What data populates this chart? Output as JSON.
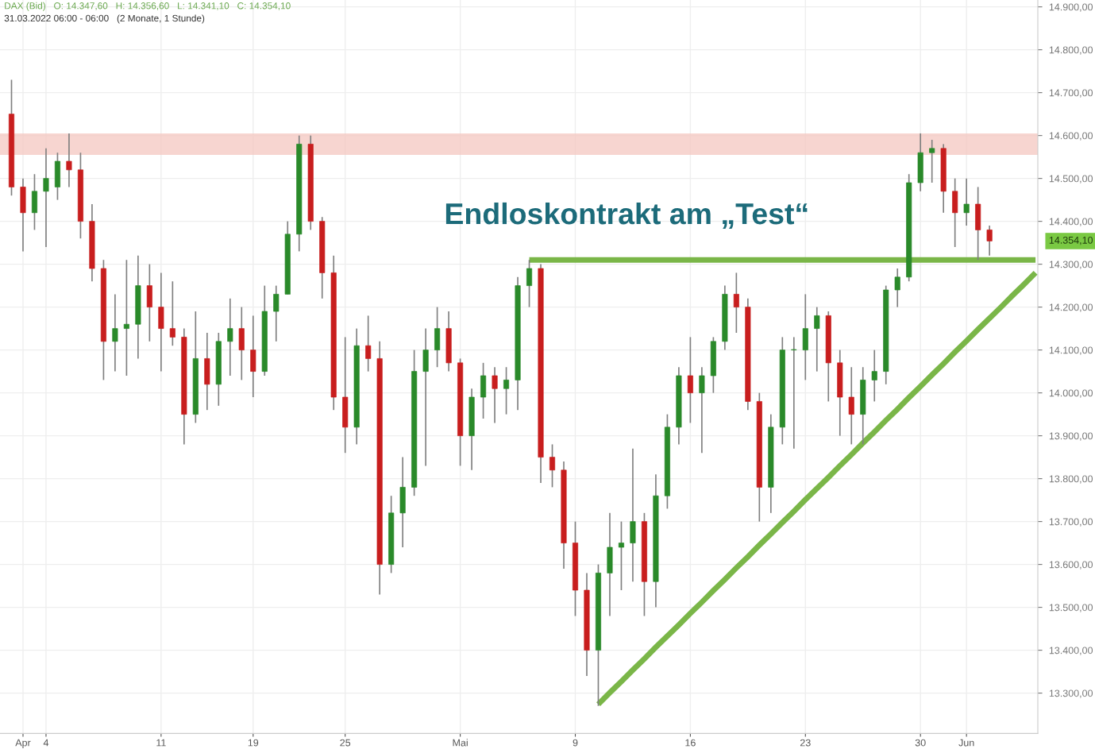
{
  "chart_data": {
    "type": "candlestick",
    "title": "DAX (Bid)   O: 14.347,60   H: 14.356,60   L: 14.341,10   C: 14.354,10",
    "subtitle": "31.03.2022 06:00 - 06:00   (2 Monate, 1 Stunde)",
    "categories": [
      null,
      "Apr",
      null,
      "4",
      null,
      null,
      null,
      null,
      null,
      null,
      null,
      null,
      null,
      "11",
      null,
      null,
      null,
      null,
      null,
      null,
      null,
      "19",
      null,
      null,
      null,
      null,
      null,
      null,
      null,
      "25",
      null,
      null,
      null,
      null,
      null,
      null,
      null,
      null,
      null,
      "Mai",
      null,
      null,
      null,
      null,
      null,
      null,
      null,
      null,
      null,
      "9",
      null,
      null,
      null,
      null,
      null,
      null,
      null,
      null,
      null,
      "16",
      null,
      null,
      null,
      null,
      null,
      null,
      null,
      null,
      null,
      "23",
      null,
      null,
      null,
      null,
      null,
      null,
      null,
      null,
      null,
      "30",
      null,
      null,
      null,
      "Jun",
      null,
      null,
      null,
      null,
      null,
      null
    ],
    "ohlc": [
      [
        14650,
        14730,
        14460,
        14480
      ],
      [
        14480,
        14500,
        14330,
        14420
      ],
      [
        14420,
        14510,
        14380,
        14470
      ],
      [
        14470,
        14570,
        14340,
        14500
      ],
      [
        14480,
        14560,
        14450,
        14540
      ],
      [
        14540,
        14605,
        14480,
        14520
      ],
      [
        14520,
        14560,
        14360,
        14400
      ],
      [
        14400,
        14440,
        14260,
        14290
      ],
      [
        14290,
        14310,
        14030,
        14120
      ],
      [
        14120,
        14230,
        14050,
        14150
      ],
      [
        14150,
        14310,
        14040,
        14160
      ],
      [
        14160,
        14320,
        14080,
        14250
      ],
      [
        14250,
        14300,
        14120,
        14200
      ],
      [
        14200,
        14280,
        14050,
        14150
      ],
      [
        14150,
        14260,
        14110,
        14130
      ],
      [
        14130,
        14150,
        13880,
        13950
      ],
      [
        13950,
        14190,
        13930,
        14080
      ],
      [
        14080,
        14140,
        13960,
        14020
      ],
      [
        14020,
        14140,
        13970,
        14120
      ],
      [
        14120,
        14220,
        14040,
        14150
      ],
      [
        14150,
        14200,
        14030,
        14100
      ],
      [
        14100,
        14180,
        13990,
        14050
      ],
      [
        14050,
        14250,
        14040,
        14190
      ],
      [
        14190,
        14250,
        14120,
        14230
      ],
      [
        14230,
        14400,
        14230,
        14370
      ],
      [
        14370,
        14600,
        14330,
        14580
      ],
      [
        14580,
        14600,
        14380,
        14400
      ],
      [
        14400,
        14410,
        14220,
        14280
      ],
      [
        14280,
        14320,
        13960,
        13990
      ],
      [
        13990,
        14130,
        13860,
        13920
      ],
      [
        13920,
        14150,
        13880,
        14110
      ],
      [
        14110,
        14180,
        14050,
        14080
      ],
      [
        14080,
        14120,
        13530,
        13600
      ],
      [
        13600,
        13760,
        13580,
        13720
      ],
      [
        13720,
        13850,
        13640,
        13780
      ],
      [
        13780,
        14100,
        13760,
        14050
      ],
      [
        14050,
        14150,
        13830,
        14100
      ],
      [
        14100,
        14200,
        14060,
        14150
      ],
      [
        14150,
        14190,
        14050,
        14070
      ],
      [
        14070,
        14080,
        13830,
        13900
      ],
      [
        13900,
        14010,
        13820,
        13990
      ],
      [
        13990,
        14070,
        13940,
        14040
      ],
      [
        14040,
        14060,
        13930,
        14010
      ],
      [
        14010,
        14060,
        13950,
        14030
      ],
      [
        14030,
        14270,
        13960,
        14250
      ],
      [
        14250,
        14310,
        14200,
        14290
      ],
      [
        14290,
        14300,
        13790,
        13850
      ],
      [
        13850,
        13880,
        13780,
        13820
      ],
      [
        13820,
        13840,
        13590,
        13650
      ],
      [
        13650,
        13700,
        13480,
        13540
      ],
      [
        13540,
        13580,
        13340,
        13400
      ],
      [
        13400,
        13600,
        13270,
        13580
      ],
      [
        13580,
        13720,
        13480,
        13640
      ],
      [
        13640,
        13700,
        13540,
        13650
      ],
      [
        13650,
        13870,
        13560,
        13700
      ],
      [
        13700,
        13720,
        13480,
        13560
      ],
      [
        13560,
        13810,
        13500,
        13760
      ],
      [
        13760,
        13950,
        13730,
        13920
      ],
      [
        13920,
        14060,
        13880,
        14040
      ],
      [
        14040,
        14130,
        13930,
        14000
      ],
      [
        14000,
        14060,
        13860,
        14040
      ],
      [
        14040,
        14130,
        14000,
        14120
      ],
      [
        14120,
        14250,
        14100,
        14230
      ],
      [
        14230,
        14280,
        14140,
        14200
      ],
      [
        14200,
        14220,
        13960,
        13980
      ],
      [
        13980,
        14000,
        13700,
        13780
      ],
      [
        13780,
        13950,
        13720,
        13920
      ],
      [
        13920,
        14130,
        13880,
        14100
      ],
      [
        14100,
        14130,
        13870,
        14100
      ],
      [
        14100,
        14230,
        14030,
        14150
      ],
      [
        14150,
        14200,
        14050,
        14180
      ],
      [
        14180,
        14190,
        13980,
        14070
      ],
      [
        14070,
        14100,
        13900,
        13990
      ],
      [
        13990,
        14060,
        13880,
        13950
      ],
      [
        13950,
        14060,
        13880,
        14030
      ],
      [
        14030,
        14100,
        13980,
        14050
      ],
      [
        14050,
        14250,
        14020,
        14240
      ],
      [
        14240,
        14290,
        14200,
        14270
      ],
      [
        14270,
        14510,
        14260,
        14490
      ],
      [
        14490,
        14605,
        14470,
        14560
      ],
      [
        14560,
        14590,
        14490,
        14570
      ],
      [
        14570,
        14580,
        14420,
        14470
      ],
      [
        14470,
        14500,
        14340,
        14420
      ],
      [
        14420,
        14500,
        14390,
        14440
      ],
      [
        14440,
        14480,
        14310,
        14380
      ],
      [
        14380,
        14390,
        14320,
        14354.1
      ],
      null,
      null,
      null,
      null
    ],
    "series": [
      {
        "type": "line",
        "color": "#7ab648",
        "values": [
          null,
          null,
          null,
          null,
          null,
          null,
          null,
          null,
          null,
          null,
          null,
          null,
          null,
          null,
          null,
          null,
          null,
          null,
          null,
          null,
          null,
          null,
          null,
          null,
          null,
          null,
          null,
          null,
          null,
          null,
          null,
          null,
          null,
          null,
          null,
          null,
          null,
          null,
          null,
          null,
          null,
          null,
          null,
          null,
          null,
          14310,
          14310,
          14310,
          14310,
          14310,
          14310,
          14310,
          14310,
          14310,
          14310,
          14310,
          14310,
          14310,
          14310,
          14310,
          14310,
          14310,
          14310,
          14310,
          14310,
          14310,
          14310,
          14310,
          14310,
          14310,
          14310,
          14310,
          14310,
          14310,
          14310,
          14310,
          14310,
          14310,
          14310,
          14310,
          14310,
          14310,
          14310,
          14310,
          14310,
          14310,
          14310,
          14310,
          14310,
          14310
        ]
      },
      {
        "type": "line",
        "color": "#7ab648",
        "values": [
          null,
          null,
          null,
          null,
          null,
          null,
          null,
          null,
          null,
          null,
          null,
          null,
          null,
          null,
          null,
          null,
          null,
          null,
          null,
          null,
          null,
          null,
          null,
          null,
          null,
          null,
          null,
          null,
          null,
          null,
          null,
          null,
          null,
          null,
          null,
          null,
          null,
          null,
          null,
          null,
          null,
          null,
          null,
          null,
          null,
          null,
          null,
          null,
          null,
          null,
          null,
          13274,
          13301,
          13327,
          13354,
          13380,
          13407,
          13433,
          13459,
          13486,
          13512,
          13539,
          13565,
          13592,
          13618,
          13645,
          13671,
          13698,
          13724,
          13751,
          13777,
          13803,
          13830,
          13856,
          13883,
          13909,
          13936,
          13962,
          13989,
          14015,
          14042,
          14068,
          14095,
          14121,
          14148,
          14174,
          14200,
          14227,
          14253,
          14280
        ]
      }
    ],
    "bands": [
      {
        "axis": "y",
        "from": 14555,
        "to": 14605,
        "color": "#f4c7c0"
      }
    ],
    "annotations": [
      "Endloskontrakt am „Test“",
      "14.354,10"
    ],
    "ylim": [
      13206,
      14916
    ],
    "yticks": [
      {
        "value": 13300,
        "label": "13.300,00"
      },
      {
        "value": 13400,
        "label": "13.400,00"
      },
      {
        "value": 13500,
        "label": "13.500,00"
      },
      {
        "value": 13600,
        "label": "13.600,00"
      },
      {
        "value": 13700,
        "label": "13.700,00"
      },
      {
        "value": 13800,
        "label": "13.800,00"
      },
      {
        "value": 13900,
        "label": "13.900,00"
      },
      {
        "value": 14000,
        "label": "14.000,00"
      },
      {
        "value": 14100,
        "label": "14.100,00"
      },
      {
        "value": 14200,
        "label": "14.200,00"
      },
      {
        "value": 14300,
        "label": "14.300,00"
      },
      {
        "value": 14400,
        "label": "14.400,00"
      },
      {
        "value": 14500,
        "label": "14.500,00"
      },
      {
        "value": 14600,
        "label": "14.600,00"
      },
      {
        "value": 14700,
        "label": "14.700,00"
      },
      {
        "value": 14800,
        "label": "14.800,00"
      },
      {
        "value": 14900,
        "label": "14.900,00"
      }
    ],
    "grid": true,
    "legend": false
  }
}
